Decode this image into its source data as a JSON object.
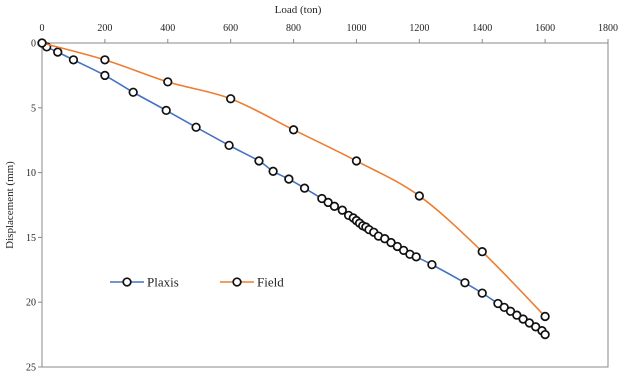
{
  "chart_data": {
    "type": "line",
    "xlabel": "Load (ton)",
    "ylabel": "Displacement (mm)",
    "xlim": [
      0,
      1800
    ],
    "ylim": [
      0,
      25
    ],
    "y_inverted": true,
    "x_axis_position": "top",
    "x_ticks": [
      0,
      200,
      400,
      600,
      800,
      1000,
      1200,
      1400,
      1600,
      1800
    ],
    "y_ticks": [
      0,
      5,
      10,
      15,
      20,
      25
    ],
    "grid": false,
    "legend": "bottom-left",
    "series": [
      {
        "name": "Plaxis",
        "color": "#4472C4",
        "marker": "circle-open",
        "x": [
          0,
          15,
          50,
          100,
          200,
          290,
          395,
          490,
          595,
          690,
          735,
          785,
          835,
          890,
          910,
          930,
          955,
          975,
          990,
          1000,
          1010,
          1020,
          1030,
          1040,
          1055,
          1070,
          1090,
          1110,
          1130,
          1150,
          1170,
          1190,
          1240,
          1345,
          1400,
          1450,
          1470,
          1490,
          1510,
          1530,
          1550,
          1570,
          1590,
          1600
        ],
        "y": [
          0,
          0.3,
          0.7,
          1.3,
          2.5,
          3.8,
          5.2,
          6.5,
          7.9,
          9.1,
          9.9,
          10.5,
          11.2,
          12.0,
          12.3,
          12.6,
          12.9,
          13.3,
          13.5,
          13.7,
          13.9,
          14.1,
          14.2,
          14.4,
          14.6,
          14.9,
          15.1,
          15.4,
          15.7,
          16.0,
          16.3,
          16.5,
          17.1,
          18.5,
          19.3,
          20.1,
          20.4,
          20.7,
          21.0,
          21.3,
          21.6,
          21.9,
          22.2,
          22.5
        ]
      },
      {
        "name": "Field",
        "color": "#ED7D31",
        "marker": "circle-open",
        "x": [
          0,
          200,
          400,
          600,
          800,
          1000,
          1200,
          1400,
          1600
        ],
        "y": [
          0,
          1.3,
          3.0,
          4.3,
          6.7,
          9.1,
          11.8,
          16.1,
          21.1
        ]
      }
    ]
  }
}
